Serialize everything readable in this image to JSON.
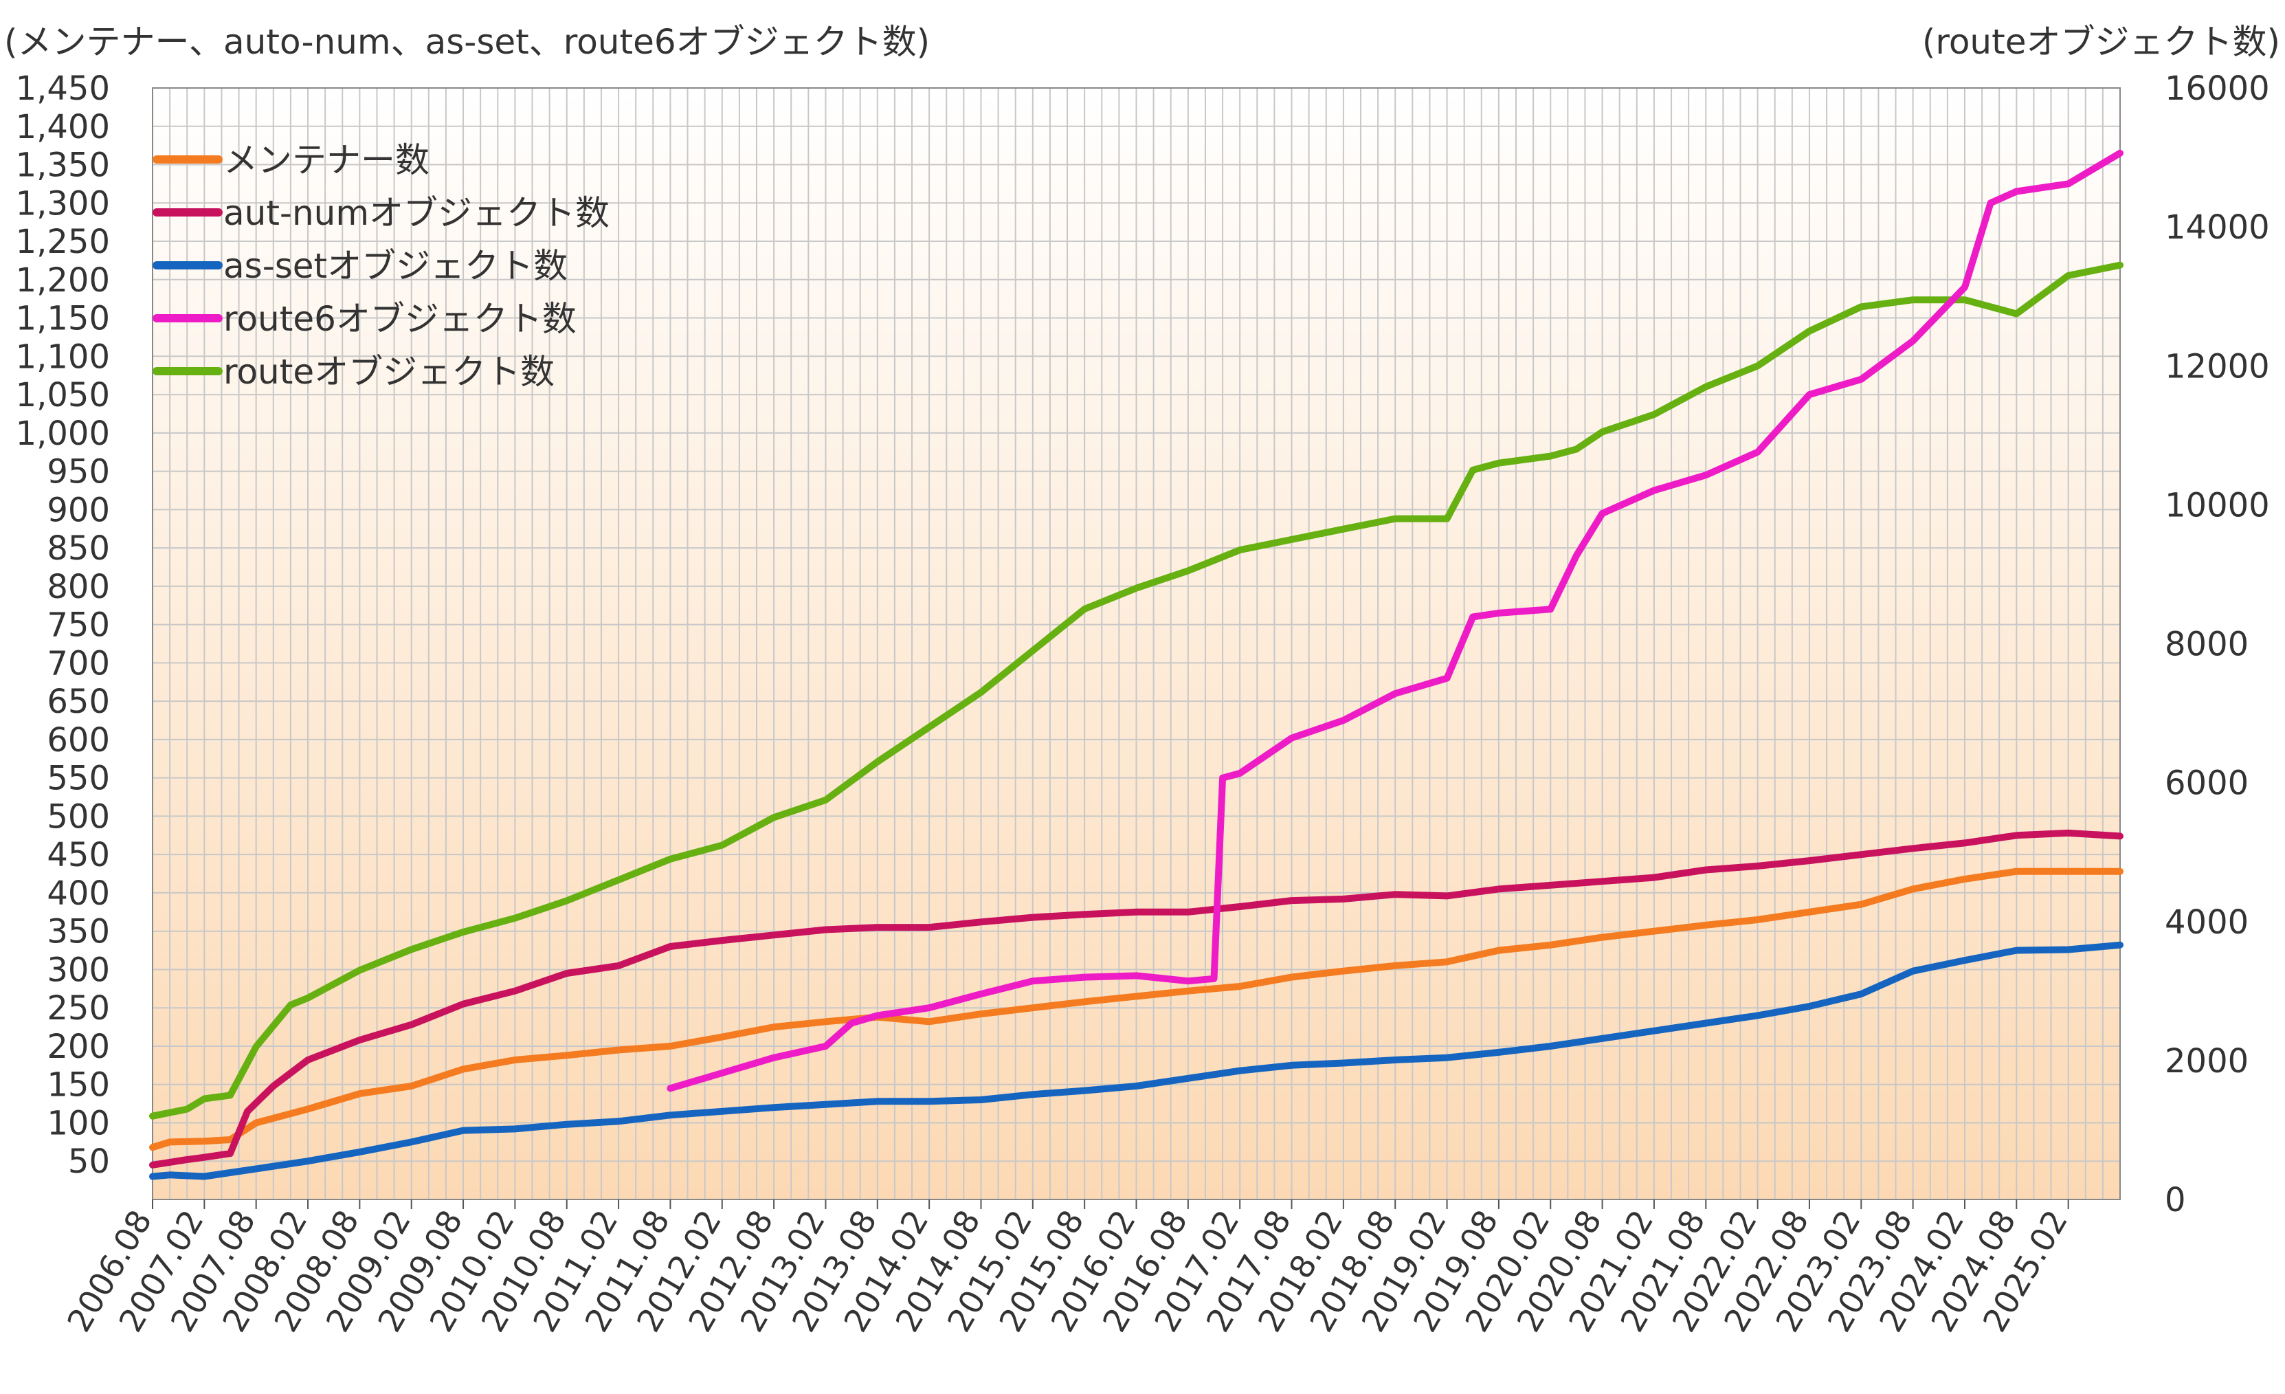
{
  "chart_data": {
    "type": "line",
    "left_axis_title": "(メンテナー、auto-num、as-set、route6オブジェクト数)",
    "right_axis_title": "(routeオブジェクト数)",
    "y_left": {
      "min": 0,
      "max": 1450,
      "tick_values": [
        50,
        100,
        150,
        200,
        250,
        300,
        350,
        400,
        450,
        500,
        550,
        600,
        650,
        700,
        750,
        800,
        850,
        900,
        950,
        1000,
        1050,
        1100,
        1150,
        1200,
        1250,
        1300,
        1350,
        1400,
        1450
      ],
      "tick_labels": [
        "50",
        "100",
        "150",
        "200",
        "250",
        "300",
        "350",
        "400",
        "450",
        "500",
        "550",
        "600",
        "650",
        "700",
        "750",
        "800",
        "850",
        "900",
        "950",
        "1,000",
        "1,050",
        "1,100",
        "1,150",
        "1,200",
        "1,250",
        "1,300",
        "1,350",
        "1,400",
        "1,450"
      ]
    },
    "y_right": {
      "min": 0,
      "max": 16000,
      "tick_values": [
        0,
        2000,
        4000,
        6000,
        8000,
        10000,
        12000,
        14000,
        16000
      ],
      "tick_labels": [
        "0",
        "2000",
        "4000",
        "6000",
        "8000",
        "10000",
        "12000",
        "14000",
        "16000"
      ]
    },
    "x": {
      "start": "2006.08",
      "end": "2025.08",
      "tick_labels": [
        "2006.08",
        "2007.02",
        "2007.08",
        "2008.02",
        "2008.08",
        "2009.02",
        "2009.08",
        "2010.02",
        "2010.08",
        "2011.02",
        "2011.08",
        "2012.02",
        "2012.08",
        "2013.02",
        "2013.08",
        "2014.02",
        "2014.08",
        "2015.02",
        "2015.08",
        "2016.02",
        "2016.08",
        "2017.02",
        "2017.08",
        "2018.02",
        "2018.08",
        "2019.02",
        "2019.08",
        "2020.02",
        "2020.08",
        "2021.02",
        "2021.08",
        "2022.02",
        "2022.08",
        "2023.02",
        "2023.08",
        "2024.02",
        "2024.08",
        "2025.02"
      ]
    },
    "grid": true,
    "legend_placement": "top-left",
    "series": [
      {
        "name": "メンテナー数",
        "axis": "left",
        "color": "#f47b20",
        "points": [
          [
            "2006.08",
            68
          ],
          [
            "2006.10",
            75
          ],
          [
            "2007.02",
            76
          ],
          [
            "2007.05",
            78
          ],
          [
            "2007.08",
            100
          ],
          [
            "2008.02",
            118
          ],
          [
            "2008.08",
            138
          ],
          [
            "2009.02",
            148
          ],
          [
            "2009.08",
            170
          ],
          [
            "2010.02",
            182
          ],
          [
            "2010.08",
            188
          ],
          [
            "2011.02",
            195
          ],
          [
            "2011.08",
            200
          ],
          [
            "2012.02",
            212
          ],
          [
            "2012.08",
            225
          ],
          [
            "2013.02",
            232
          ],
          [
            "2013.08",
            238
          ],
          [
            "2014.02",
            232
          ],
          [
            "2014.08",
            242
          ],
          [
            "2015.02",
            250
          ],
          [
            "2015.08",
            258
          ],
          [
            "2016.02",
            265
          ],
          [
            "2016.08",
            272
          ],
          [
            "2017.02",
            278
          ],
          [
            "2017.08",
            290
          ],
          [
            "2018.02",
            298
          ],
          [
            "2018.08",
            305
          ],
          [
            "2019.02",
            310
          ],
          [
            "2019.08",
            325
          ],
          [
            "2020.02",
            332
          ],
          [
            "2020.08",
            342
          ],
          [
            "2021.02",
            350
          ],
          [
            "2021.08",
            358
          ],
          [
            "2022.02",
            365
          ],
          [
            "2022.08",
            375
          ],
          [
            "2023.02",
            385
          ],
          [
            "2023.08",
            405
          ],
          [
            "2024.02",
            418
          ],
          [
            "2024.08",
            428
          ],
          [
            "2025.02",
            428
          ],
          [
            "2025.08",
            428
          ]
        ]
      },
      {
        "name": "aut-numオブジェクト数",
        "axis": "left",
        "color": "#c8125e",
        "points": [
          [
            "2006.08",
            45
          ],
          [
            "2006.12",
            52
          ],
          [
            "2007.02",
            55
          ],
          [
            "2007.05",
            60
          ],
          [
            "2007.07",
            115
          ],
          [
            "2007.10",
            148
          ],
          [
            "2008.02",
            182
          ],
          [
            "2008.08",
            208
          ],
          [
            "2009.02",
            228
          ],
          [
            "2009.08",
            255
          ],
          [
            "2010.02",
            272
          ],
          [
            "2010.08",
            295
          ],
          [
            "2011.02",
            305
          ],
          [
            "2011.08",
            330
          ],
          [
            "2012.02",
            338
          ],
          [
            "2012.08",
            345
          ],
          [
            "2013.02",
            352
          ],
          [
            "2013.08",
            355
          ],
          [
            "2014.02",
            355
          ],
          [
            "2014.08",
            362
          ],
          [
            "2015.02",
            368
          ],
          [
            "2015.08",
            372
          ],
          [
            "2016.02",
            375
          ],
          [
            "2016.08",
            375
          ],
          [
            "2017.02",
            382
          ],
          [
            "2017.08",
            390
          ],
          [
            "2018.02",
            392
          ],
          [
            "2018.08",
            398
          ],
          [
            "2019.02",
            396
          ],
          [
            "2019.08",
            405
          ],
          [
            "2020.02",
            410
          ],
          [
            "2020.08",
            415
          ],
          [
            "2021.02",
            420
          ],
          [
            "2021.08",
            430
          ],
          [
            "2022.02",
            435
          ],
          [
            "2022.08",
            442
          ],
          [
            "2023.02",
            450
          ],
          [
            "2023.08",
            458
          ],
          [
            "2024.02",
            465
          ],
          [
            "2024.08",
            475
          ],
          [
            "2025.02",
            478
          ],
          [
            "2025.08",
            474
          ]
        ]
      },
      {
        "name": "as-setオブジェクト数",
        "axis": "left",
        "color": "#1565c0",
        "points": [
          [
            "2006.08",
            30
          ],
          [
            "2006.10",
            32
          ],
          [
            "2007.02",
            30
          ],
          [
            "2007.08",
            40
          ],
          [
            "2008.02",
            50
          ],
          [
            "2008.08",
            62
          ],
          [
            "2009.02",
            75
          ],
          [
            "2009.08",
            90
          ],
          [
            "2010.02",
            92
          ],
          [
            "2010.08",
            98
          ],
          [
            "2011.02",
            102
          ],
          [
            "2011.08",
            110
          ],
          [
            "2012.02",
            115
          ],
          [
            "2012.08",
            120
          ],
          [
            "2013.02",
            124
          ],
          [
            "2013.08",
            128
          ],
          [
            "2014.02",
            128
          ],
          [
            "2014.08",
            130
          ],
          [
            "2015.02",
            137
          ],
          [
            "2015.08",
            142
          ],
          [
            "2016.02",
            148
          ],
          [
            "2016.08",
            158
          ],
          [
            "2017.02",
            168
          ],
          [
            "2017.08",
            175
          ],
          [
            "2018.02",
            178
          ],
          [
            "2018.08",
            182
          ],
          [
            "2019.02",
            185
          ],
          [
            "2019.08",
            192
          ],
          [
            "2020.02",
            200
          ],
          [
            "2020.08",
            210
          ],
          [
            "2021.02",
            220
          ],
          [
            "2021.08",
            230
          ],
          [
            "2022.02",
            240
          ],
          [
            "2022.08",
            252
          ],
          [
            "2023.02",
            268
          ],
          [
            "2023.08",
            298
          ],
          [
            "2024.02",
            312
          ],
          [
            "2024.08",
            325
          ],
          [
            "2025.02",
            326
          ],
          [
            "2025.08",
            332
          ]
        ]
      },
      {
        "name": "route6オブジェクト数",
        "axis": "left",
        "color": "#ee1cc6",
        "points": [
          [
            "2011.08",
            145
          ],
          [
            "2012.02",
            165
          ],
          [
            "2012.08",
            185
          ],
          [
            "2013.02",
            200
          ],
          [
            "2013.05",
            230
          ],
          [
            "2013.08",
            240
          ],
          [
            "2014.02",
            250
          ],
          [
            "2014.08",
            268
          ],
          [
            "2015.02",
            285
          ],
          [
            "2015.08",
            290
          ],
          [
            "2016.02",
            292
          ],
          [
            "2016.08",
            285
          ],
          [
            "2016.11",
            288
          ],
          [
            "2016.12",
            550
          ],
          [
            "2017.02",
            556
          ],
          [
            "2017.08",
            602
          ],
          [
            "2018.02",
            625
          ],
          [
            "2018.08",
            660
          ],
          [
            "2019.02",
            680
          ],
          [
            "2019.05",
            760
          ],
          [
            "2019.08",
            765
          ],
          [
            "2020.02",
            770
          ],
          [
            "2020.05",
            840
          ],
          [
            "2020.08",
            895
          ],
          [
            "2021.02",
            925
          ],
          [
            "2021.08",
            945
          ],
          [
            "2022.02",
            975
          ],
          [
            "2022.08",
            1050
          ],
          [
            "2023.02",
            1070
          ],
          [
            "2023.08",
            1120
          ],
          [
            "2024.02",
            1190
          ],
          [
            "2024.05",
            1300
          ],
          [
            "2024.08",
            1315
          ],
          [
            "2025.02",
            1325
          ],
          [
            "2025.08",
            1365
          ]
        ]
      },
      {
        "name": "routeオブジェクト数",
        "axis": "right",
        "color": "#66b012",
        "points": [
          [
            "2006.08",
            1200
          ],
          [
            "2006.12",
            1300
          ],
          [
            "2007.02",
            1450
          ],
          [
            "2007.05",
            1500
          ],
          [
            "2007.08",
            2200
          ],
          [
            "2007.12",
            2800
          ],
          [
            "2008.02",
            2900
          ],
          [
            "2008.08",
            3300
          ],
          [
            "2009.02",
            3600
          ],
          [
            "2009.08",
            3850
          ],
          [
            "2010.02",
            4050
          ],
          [
            "2010.08",
            4300
          ],
          [
            "2011.02",
            4600
          ],
          [
            "2011.08",
            4900
          ],
          [
            "2012.02",
            5100
          ],
          [
            "2012.08",
            5500
          ],
          [
            "2013.02",
            5750
          ],
          [
            "2013.08",
            6300
          ],
          [
            "2014.02",
            6800
          ],
          [
            "2014.08",
            7300
          ],
          [
            "2015.02",
            7900
          ],
          [
            "2015.08",
            8500
          ],
          [
            "2016.02",
            8800
          ],
          [
            "2016.08",
            9050
          ],
          [
            "2017.02",
            9350
          ],
          [
            "2017.08",
            9500
          ],
          [
            "2018.02",
            9650
          ],
          [
            "2018.08",
            9800
          ],
          [
            "2019.02",
            9800
          ],
          [
            "2019.05",
            10500
          ],
          [
            "2019.08",
            10600
          ],
          [
            "2020.02",
            10700
          ],
          [
            "2020.05",
            10800
          ],
          [
            "2020.08",
            11050
          ],
          [
            "2021.02",
            11300
          ],
          [
            "2021.08",
            11700
          ],
          [
            "2022.02",
            12000
          ],
          [
            "2022.08",
            12500
          ],
          [
            "2023.02",
            12850
          ],
          [
            "2023.08",
            12950
          ],
          [
            "2024.02",
            12950
          ],
          [
            "2024.08",
            12750
          ],
          [
            "2025.02",
            13300
          ],
          [
            "2025.08",
            13450
          ]
        ]
      }
    ]
  }
}
